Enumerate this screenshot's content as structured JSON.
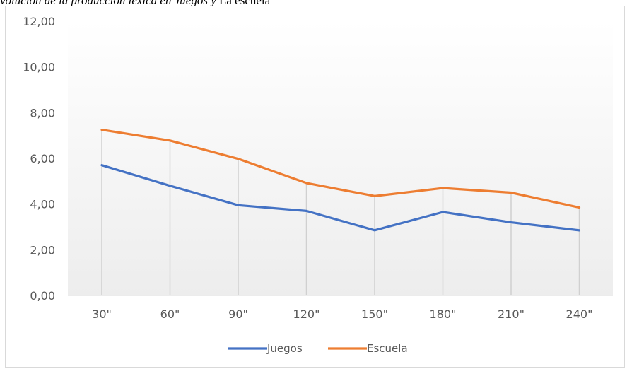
{
  "caption": {
    "italic_part": "volución de la producción léxica en Juegos y",
    "plain_part": " La escuela"
  },
  "chart_data": {
    "type": "line",
    "categories": [
      "30\"",
      "60\"",
      "90\"",
      "120\"",
      "150\"",
      "180\"",
      "210\"",
      "240\""
    ],
    "series": [
      {
        "name": "Juegos",
        "color": "#4472c4",
        "values": [
          5.7,
          4.8,
          3.95,
          3.7,
          2.85,
          3.65,
          3.2,
          2.85
        ]
      },
      {
        "name": "Escuela",
        "color": "#ed7d31",
        "values": [
          7.25,
          6.78,
          5.98,
          4.92,
          4.35,
          4.7,
          4.5,
          3.85
        ]
      }
    ],
    "yticks": [
      "0,00",
      "2,00",
      "4,00",
      "6,00",
      "8,00",
      "10,00",
      "12,00"
    ],
    "ylim": [
      0,
      12
    ],
    "grid": "vertical drop lines per category",
    "legend": "bottom-center"
  }
}
